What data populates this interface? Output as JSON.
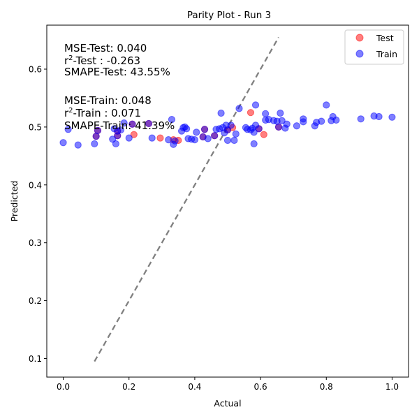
{
  "chart_data": {
    "type": "scatter",
    "title": "Parity Plot - Run 3",
    "xlabel": "Actual",
    "ylabel": "Predicted",
    "xlim": [
      -0.05,
      1.05
    ],
    "ylim": [
      0.068,
      0.676
    ],
    "x_ticks": [
      "0.0",
      "0.2",
      "0.4",
      "0.6",
      "0.8",
      "1.0"
    ],
    "y_ticks": [
      "0.1",
      "0.2",
      "0.3",
      "0.4",
      "0.5",
      "0.6"
    ],
    "grid": false,
    "legend_position": "top-right",
    "parity_line": {
      "from": [
        0.095,
        0.095
      ],
      "to": [
        0.655,
        0.655
      ],
      "color": "#808080"
    },
    "series": [
      {
        "name": "Test",
        "color": "#ff0000",
        "points": [
          [
            0.1,
            0.484
          ],
          [
            0.105,
            0.494
          ],
          [
            0.165,
            0.485
          ],
          [
            0.165,
            0.493
          ],
          [
            0.21,
            0.505
          ],
          [
            0.215,
            0.487
          ],
          [
            0.26,
            0.506
          ],
          [
            0.295,
            0.481
          ],
          [
            0.335,
            0.478
          ],
          [
            0.35,
            0.477
          ],
          [
            0.425,
            0.483
          ],
          [
            0.43,
            0.496
          ],
          [
            0.46,
            0.485
          ],
          [
            0.5,
            0.495
          ],
          [
            0.515,
            0.499
          ],
          [
            0.57,
            0.525
          ],
          [
            0.595,
            0.497
          ],
          [
            0.61,
            0.487
          ],
          [
            0.655,
            0.5
          ]
        ]
      },
      {
        "name": "Train",
        "color": "#0000ff",
        "points": [
          [
            0.0,
            0.473
          ],
          [
            0.015,
            0.496
          ],
          [
            0.045,
            0.469
          ],
          [
            0.095,
            0.471
          ],
          [
            0.1,
            0.484
          ],
          [
            0.105,
            0.494
          ],
          [
            0.15,
            0.479
          ],
          [
            0.155,
            0.497
          ],
          [
            0.16,
            0.471
          ],
          [
            0.165,
            0.485
          ],
          [
            0.165,
            0.493
          ],
          [
            0.175,
            0.495
          ],
          [
            0.185,
            0.507
          ],
          [
            0.2,
            0.481
          ],
          [
            0.21,
            0.505
          ],
          [
            0.26,
            0.506
          ],
          [
            0.27,
            0.481
          ],
          [
            0.32,
            0.478
          ],
          [
            0.33,
            0.513
          ],
          [
            0.335,
            0.47
          ],
          [
            0.34,
            0.476
          ],
          [
            0.36,
            0.493
          ],
          [
            0.365,
            0.499
          ],
          [
            0.37,
            0.5
          ],
          [
            0.375,
            0.497
          ],
          [
            0.38,
            0.48
          ],
          [
            0.39,
            0.479
          ],
          [
            0.4,
            0.478
          ],
          [
            0.405,
            0.491
          ],
          [
            0.425,
            0.483
          ],
          [
            0.43,
            0.496
          ],
          [
            0.44,
            0.48
          ],
          [
            0.46,
            0.485
          ],
          [
            0.465,
            0.496
          ],
          [
            0.475,
            0.497
          ],
          [
            0.48,
            0.524
          ],
          [
            0.485,
            0.499
          ],
          [
            0.49,
            0.49
          ],
          [
            0.495,
            0.503
          ],
          [
            0.5,
            0.477
          ],
          [
            0.5,
            0.495
          ],
          [
            0.51,
            0.503
          ],
          [
            0.52,
            0.477
          ],
          [
            0.525,
            0.488
          ],
          [
            0.535,
            0.532
          ],
          [
            0.555,
            0.499
          ],
          [
            0.56,
            0.496
          ],
          [
            0.57,
            0.495
          ],
          [
            0.575,
            0.498
          ],
          [
            0.58,
            0.471
          ],
          [
            0.58,
            0.491
          ],
          [
            0.585,
            0.503
          ],
          [
            0.585,
            0.538
          ],
          [
            0.595,
            0.497
          ],
          [
            0.615,
            0.512
          ],
          [
            0.615,
            0.523
          ],
          [
            0.625,
            0.513
          ],
          [
            0.64,
            0.511
          ],
          [
            0.65,
            0.51
          ],
          [
            0.655,
            0.5
          ],
          [
            0.66,
            0.524
          ],
          [
            0.665,
            0.511
          ],
          [
            0.675,
            0.498
          ],
          [
            0.68,
            0.505
          ],
          [
            0.71,
            0.502
          ],
          [
            0.73,
            0.509
          ],
          [
            0.73,
            0.514
          ],
          [
            0.765,
            0.502
          ],
          [
            0.77,
            0.508
          ],
          [
            0.785,
            0.51
          ],
          [
            0.8,
            0.538
          ],
          [
            0.815,
            0.511
          ],
          [
            0.82,
            0.518
          ],
          [
            0.83,
            0.512
          ],
          [
            0.905,
            0.514
          ],
          [
            0.945,
            0.519
          ],
          [
            0.96,
            0.518
          ],
          [
            1.0,
            0.517
          ]
        ]
      }
    ],
    "annotations": {
      "test": {
        "mse": "MSE-Test: 0.040",
        "r2_prefix": "r",
        "r2_sup": "2",
        "r2_suffix": "-Test : -0.263",
        "smape": "SMAPE-Test: 43.55%"
      },
      "train": {
        "mse": "MSE-Train: 0.048",
        "r2_prefix": "r",
        "r2_sup": "2",
        "r2_suffix": "-Train : 0.071",
        "smape": "SMAPE-Train: 41.39%"
      }
    }
  }
}
